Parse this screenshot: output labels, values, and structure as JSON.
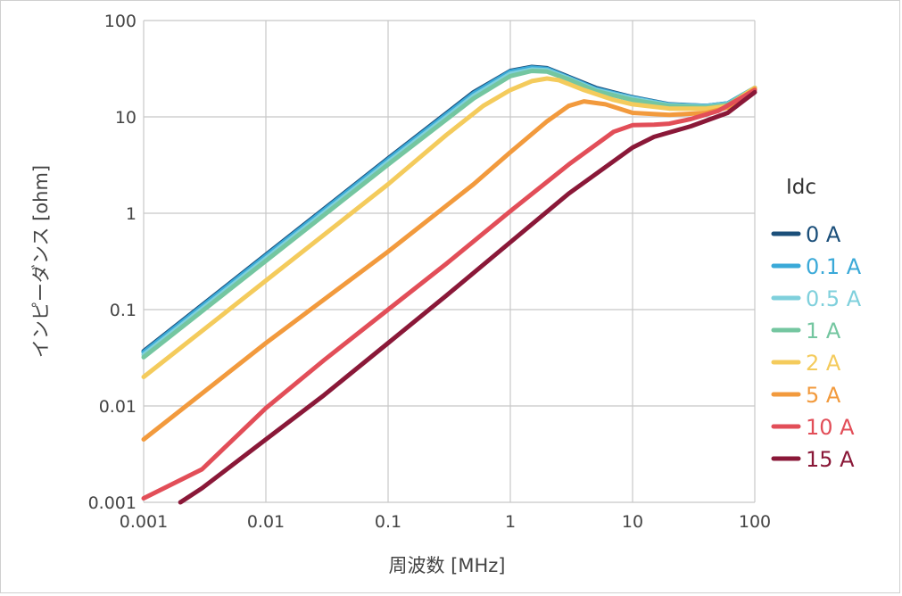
{
  "chart_data": {
    "type": "line",
    "xscale": "log",
    "yscale": "log",
    "xlim": [
      0.001,
      100
    ],
    "ylim": [
      0.001,
      100
    ],
    "xlabel": "周波数 [MHz]",
    "ylabel": "インピーダンス [ohm]",
    "x_ticks": [
      "0.001",
      "0.01",
      "0.1",
      "1",
      "10",
      "100"
    ],
    "y_ticks": [
      "0.001",
      "0.01",
      "0.1",
      "1",
      "10",
      "100"
    ],
    "grid": true,
    "legend_title": "Idc",
    "legend_position": "right",
    "series": [
      {
        "name": "0 A",
        "color": "#1b4f7a",
        "x": [
          0.001,
          0.01,
          0.1,
          0.5,
          1,
          1.5,
          2,
          3,
          5,
          10,
          20,
          40,
          60,
          100
        ],
        "y": [
          0.037,
          0.37,
          3.7,
          18,
          30,
          33,
          32,
          26,
          20,
          16,
          13.5,
          13,
          13.8,
          20
        ]
      },
      {
        "name": "0.1 A",
        "color": "#3aa9d8",
        "x": [
          0.001,
          0.01,
          0.1,
          0.5,
          1,
          1.5,
          2,
          3,
          5,
          10,
          20,
          40,
          60,
          100
        ],
        "y": [
          0.036,
          0.36,
          3.6,
          17.5,
          29.5,
          32.5,
          31.5,
          25.5,
          19.5,
          15.8,
          13.4,
          13,
          13.8,
          20
        ]
      },
      {
        "name": "0.5 A",
        "color": "#7fd0dc",
        "x": [
          0.001,
          0.01,
          0.1,
          0.5,
          1,
          1.5,
          2,
          3,
          5,
          10,
          20,
          40,
          60,
          100
        ],
        "y": [
          0.034,
          0.34,
          3.4,
          16.5,
          28,
          31,
          30.5,
          25,
          19,
          15.5,
          13.2,
          12.8,
          13.6,
          20
        ]
      },
      {
        "name": "1 A",
        "color": "#74c6a0",
        "x": [
          0.001,
          0.01,
          0.1,
          0.5,
          1,
          1.5,
          2,
          3,
          5,
          10,
          20,
          40,
          60,
          100
        ],
        "y": [
          0.032,
          0.32,
          3.2,
          15.5,
          26.5,
          30,
          29.5,
          24.5,
          18.5,
          15,
          13,
          12.6,
          13.4,
          20
        ]
      },
      {
        "name": "2 A",
        "color": "#f4cb5c",
        "x": [
          0.001,
          0.01,
          0.1,
          0.3,
          0.6,
          1,
          1.5,
          2,
          2.5,
          4,
          7,
          10,
          20,
          40,
          60,
          100
        ],
        "y": [
          0.02,
          0.2,
          2.0,
          6.5,
          13,
          19,
          23.5,
          25,
          24,
          19,
          15,
          13.5,
          12.2,
          12.2,
          13,
          20
        ]
      },
      {
        "name": "5 A",
        "color": "#f29a3d",
        "x": [
          0.001,
          0.01,
          0.1,
          0.5,
          1,
          2,
          3,
          4,
          6,
          10,
          20,
          40,
          60,
          100
        ],
        "y": [
          0.0045,
          0.045,
          0.4,
          2.0,
          4.3,
          9,
          13,
          14.5,
          13.5,
          11,
          10.5,
          11,
          12.5,
          19.5
        ]
      },
      {
        "name": "10 A",
        "color": "#e24e58",
        "x": [
          0.001,
          0.003,
          0.01,
          0.03,
          0.1,
          0.3,
          1,
          3,
          7,
          10,
          15,
          20,
          30,
          50,
          100
        ],
        "y": [
          0.0011,
          0.0022,
          0.0095,
          0.03,
          0.1,
          0.3,
          1.05,
          3.2,
          7,
          8.2,
          8.3,
          8.5,
          9.5,
          11.5,
          19
        ]
      },
      {
        "name": "15 A",
        "color": "#8a1838",
        "x": [
          0.002,
          0.003,
          0.01,
          0.03,
          0.1,
          0.3,
          1,
          3,
          10,
          15,
          30,
          60,
          100
        ],
        "y": [
          0.001,
          0.0014,
          0.0045,
          0.013,
          0.045,
          0.14,
          0.5,
          1.6,
          4.8,
          6.2,
          8,
          11,
          18
        ]
      }
    ]
  }
}
